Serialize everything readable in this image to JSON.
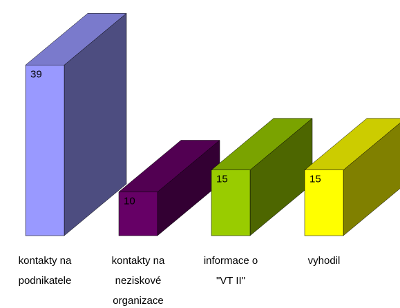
{
  "chart_data": {
    "type": "bar3d",
    "categories": [
      [
        "kontakty na",
        "podnikatele"
      ],
      [
        "kontakty na",
        "neziskové",
        "organizace"
      ],
      [
        "informace o",
        "\"VT II\""
      ],
      [
        "vyhodil"
      ]
    ],
    "values": [
      39,
      10,
      15,
      15
    ],
    "colors": [
      "#9999ff",
      "#660066",
      "#99cc00",
      "#ffff00"
    ]
  }
}
